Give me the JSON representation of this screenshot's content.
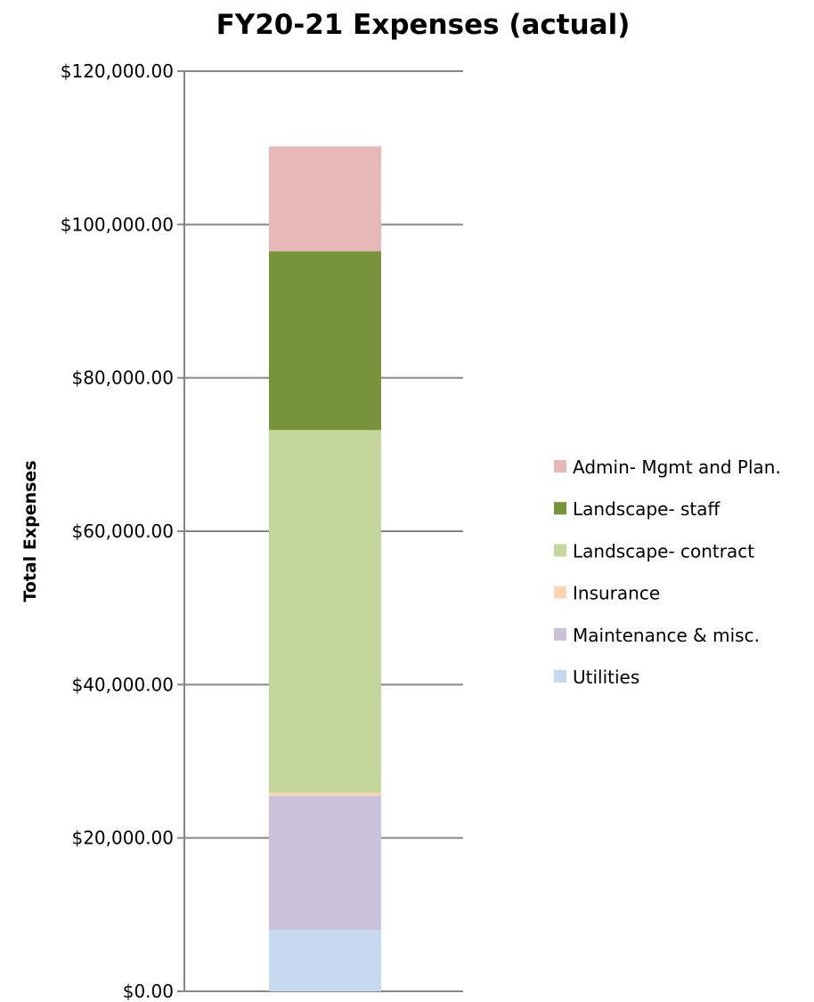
{
  "chart_data": {
    "type": "bar",
    "stacked": true,
    "title": "FY20-21 Expenses (actual)",
    "xlabel": "",
    "ylabel": "Total Expenses",
    "ylim": [
      0,
      120000
    ],
    "yticks": [
      0,
      20000,
      40000,
      60000,
      80000,
      100000,
      120000
    ],
    "ytick_labels": [
      "$0.00",
      "$20,000.00",
      "$40,000.00",
      "$60,000.00",
      "$80,000.00",
      "$100,000.00",
      "$120,000.00"
    ],
    "grid": true,
    "legend_position": "right",
    "categories": [
      ""
    ],
    "series": [
      {
        "name": "Utilities",
        "values": [
          8000
        ],
        "color": "#c6d9f1"
      },
      {
        "name": "Maintenance & misc.",
        "values": [
          17500
        ],
        "color": "#ccc1da"
      },
      {
        "name": "Insurance",
        "values": [
          400
        ],
        "color": "#fcd5b5"
      },
      {
        "name": "Landscape- contract",
        "values": [
          47300
        ],
        "color": "#c3d69b"
      },
      {
        "name": "Landscape- staff",
        "values": [
          23300
        ],
        "color": "#77933c"
      },
      {
        "name": "Admin- Mgmt and Plan.",
        "values": [
          13700
        ],
        "color": "#e6b9b8"
      }
    ]
  }
}
